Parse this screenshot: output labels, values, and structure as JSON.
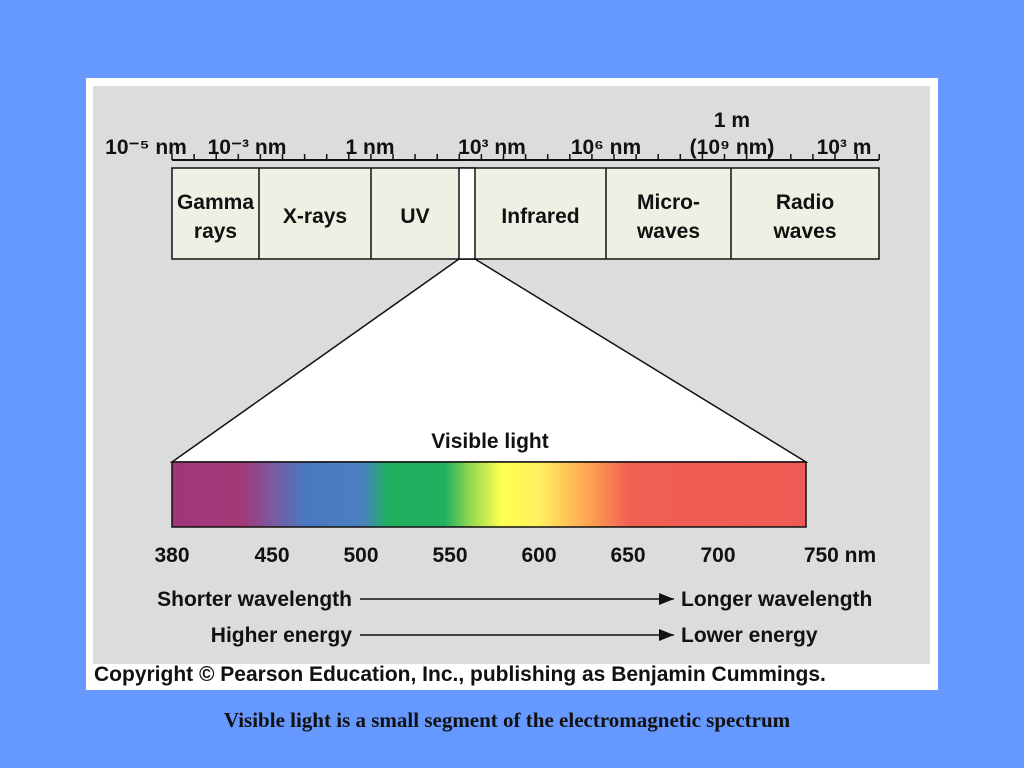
{
  "scale_labels": [
    {
      "lines": [
        "10⁻⁵ nm"
      ]
    },
    {
      "lines": [
        "10⁻³ nm"
      ]
    },
    {
      "lines": [
        "1 nm"
      ]
    },
    {
      "lines": [
        "10³ nm"
      ]
    },
    {
      "lines": [
        "10⁶ nm"
      ]
    },
    {
      "lines": [
        "1 m",
        "(10⁹ nm)"
      ]
    },
    {
      "lines": [
        "10³ m"
      ]
    }
  ],
  "bands": [
    {
      "lines": [
        "Gamma",
        "rays"
      ]
    },
    {
      "lines": [
        "X-rays"
      ]
    },
    {
      "lines": [
        "UV"
      ]
    },
    {
      "lines": [
        "Infrared"
      ]
    },
    {
      "lines": [
        "Micro-",
        "waves"
      ]
    },
    {
      "lines": [
        "Radio",
        "waves"
      ]
    }
  ],
  "visible_title": "Visible light",
  "visible_labels": [
    "380",
    "450",
    "500",
    "550",
    "600",
    "650",
    "700",
    "750 nm"
  ],
  "arrows": [
    {
      "left": "Shorter wavelength",
      "right": "Longer wavelength"
    },
    {
      "left": "Higher energy",
      "right": "Lower energy"
    }
  ],
  "copyright": "Copyright © Pearson Education, Inc., publishing as Benjamin Cummings.",
  "caption": "Visible light is a small segment of the electromagnetic spectrum"
}
